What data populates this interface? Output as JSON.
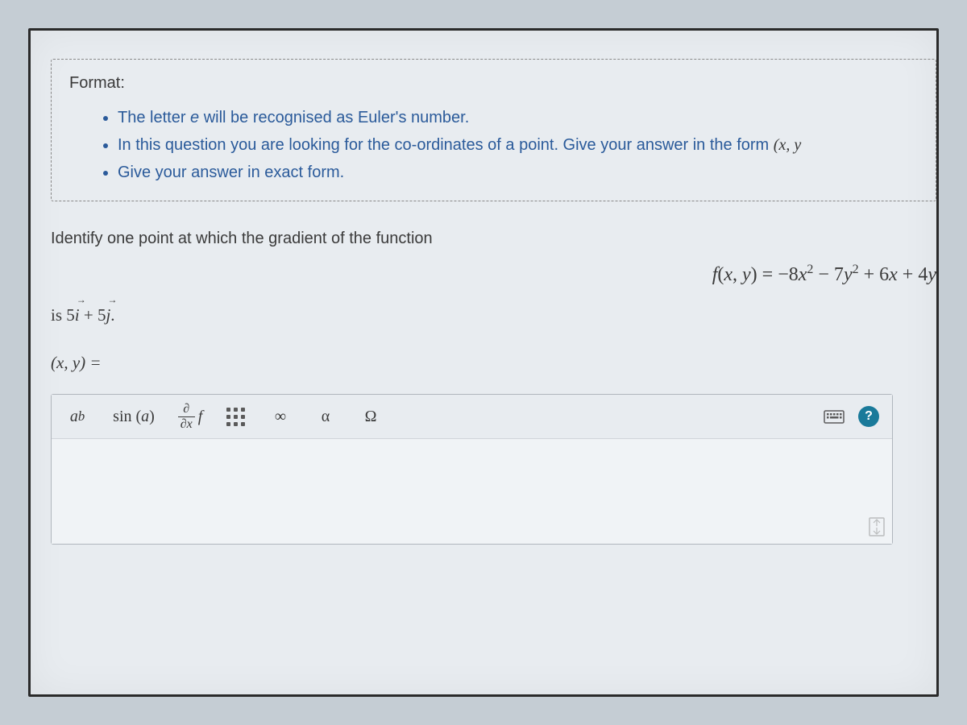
{
  "format_box": {
    "title": "Format:",
    "items": [
      "The letter <i>e</i> will be recognised as Euler's number.",
      "In this question you are looking for the co-ordinates of a point. Give your answer in the form <span class='math-inline'>(x, y</span>",
      "Give your answer in exact form."
    ]
  },
  "question": {
    "intro": "Identify one point at which the gradient of the function",
    "equation_html": "<span class='var'>f</span>(<span class='var'>x</span>, <span class='var'>y</span>) = −8<span class='var'>x</span><sup>2</sup> − 7<span class='var'>y</span><sup>2</sup> + 6<span class='var'>x</span> + 4<span class='var'>y</span>",
    "vector_html": "is 5<span class='arrow-over'><i>i</i></span> + 5<span class='arrow-over'><i>j</i></span>.",
    "answer_prompt": "(x, y) ="
  },
  "toolbar": {
    "buttons": [
      {
        "name": "exponent-button",
        "html": "<i>a</i><sup class='expo'>b</sup>"
      },
      {
        "name": "sin-button",
        "html": "sin (<i>a</i>)",
        "wide": true
      },
      {
        "name": "partial-derivative-button",
        "html": "<span class='fraction'><span class='num'>∂</span><span class='den'>∂x</span></span><span class='fn-f'>f</span>"
      },
      {
        "name": "matrix-button",
        "html": "<span class='grid3x3'><span></span><span></span><span></span><span></span><span></span><span></span><span></span><span></span><span></span></span>"
      },
      {
        "name": "infinity-button",
        "html": "∞"
      },
      {
        "name": "alpha-button",
        "html": "α"
      },
      {
        "name": "omega-button",
        "html": "Ω"
      }
    ],
    "keyboard_name": "keyboard-icon",
    "help_label": "?"
  },
  "colors": {
    "page_bg": "#c5cdd4",
    "panel_bg": "#e8ecf0",
    "link_text": "#2a5a9a",
    "text": "#3a3a3a",
    "help_bg": "#1a7a9a"
  }
}
